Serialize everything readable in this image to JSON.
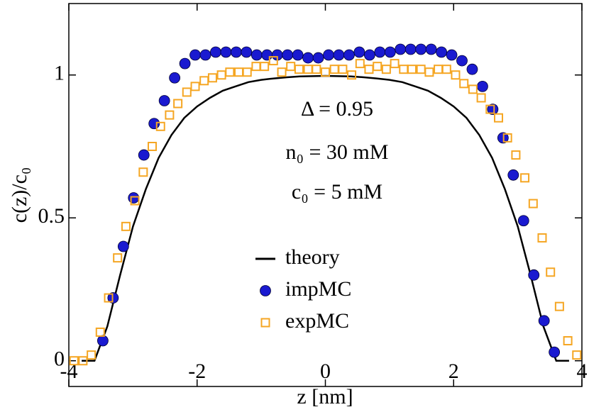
{
  "chart_data": {
    "type": "line",
    "xlabel": "z [nm]",
    "ylabel": "c(z)/c₀",
    "annotations": [
      "Δ = 0.95",
      "n₀ = 30 mM",
      "c₀ = 5 mM"
    ],
    "xlim": [
      -4,
      4
    ],
    "ylim": [
      -0.09,
      1.25
    ],
    "xticks": [
      -4,
      -2,
      0,
      2,
      4
    ],
    "yticks": [
      0,
      0.5,
      1
    ],
    "legend": "center",
    "series": [
      {
        "name": "theory",
        "color": "#000000",
        "marker": "line",
        "x": [
          -3.8,
          -3.6,
          -3.4,
          -3.2,
          -3.0,
          -2.8,
          -2.6,
          -2.4,
          -2.2,
          -2.0,
          -1.8,
          -1.6,
          -1.4,
          -1.2,
          -1.0,
          -0.8,
          -0.6,
          -0.4,
          -0.2,
          0,
          0.2,
          0.4,
          0.6,
          0.8,
          1.0,
          1.2,
          1.4,
          1.6,
          1.8,
          2.0,
          2.2,
          2.4,
          2.6,
          2.8,
          3.0,
          3.2,
          3.4,
          3.6,
          3.8
        ],
        "values": [
          0,
          0,
          0.12,
          0.3,
          0.47,
          0.6,
          0.71,
          0.79,
          0.85,
          0.89,
          0.92,
          0.945,
          0.96,
          0.975,
          0.983,
          0.988,
          0.992,
          0.995,
          0.996,
          0.997,
          0.996,
          0.995,
          0.992,
          0.988,
          0.983,
          0.975,
          0.96,
          0.945,
          0.92,
          0.89,
          0.85,
          0.79,
          0.71,
          0.6,
          0.47,
          0.3,
          0.12,
          0,
          0
        ]
      },
      {
        "name": "impMC",
        "color": "#1a1ad0",
        "marker": "circle",
        "x": [
          -3.47,
          -3.31,
          -3.15,
          -2.99,
          -2.83,
          -2.67,
          -2.51,
          -2.35,
          -2.19,
          -2.03,
          -1.87,
          -1.71,
          -1.55,
          -1.39,
          -1.23,
          -1.07,
          -0.91,
          -0.75,
          -0.59,
          -0.43,
          -0.27,
          -0.11,
          0.05,
          0.21,
          0.37,
          0.53,
          0.69,
          0.85,
          1.01,
          1.17,
          1.33,
          1.49,
          1.65,
          1.81,
          1.97,
          2.13,
          2.29,
          2.45,
          2.61,
          2.77,
          2.93,
          3.09,
          3.25,
          3.41,
          3.57
        ],
        "values": [
          0.07,
          0.22,
          0.4,
          0.57,
          0.72,
          0.83,
          0.91,
          0.99,
          1.04,
          1.07,
          1.07,
          1.08,
          1.08,
          1.08,
          1.08,
          1.07,
          1.07,
          1.07,
          1.07,
          1.07,
          1.06,
          1.06,
          1.07,
          1.07,
          1.07,
          1.08,
          1.07,
          1.08,
          1.08,
          1.09,
          1.09,
          1.09,
          1.09,
          1.08,
          1.07,
          1.05,
          1.02,
          0.96,
          0.88,
          0.78,
          0.65,
          0.49,
          0.3,
          0.14,
          0.03
        ]
      },
      {
        "name": "expMC",
        "color": "#f5a623",
        "marker": "square",
        "x": [
          -3.92,
          -3.78,
          -3.65,
          -3.51,
          -3.38,
          -3.24,
          -3.11,
          -2.97,
          -2.84,
          -2.7,
          -2.57,
          -2.43,
          -2.3,
          -2.16,
          -2.03,
          -1.89,
          -1.76,
          -1.62,
          -1.49,
          -1.35,
          -1.22,
          -1.08,
          -0.95,
          -0.81,
          -0.68,
          -0.54,
          -0.41,
          -0.27,
          -0.14,
          0,
          0.14,
          0.27,
          0.41,
          0.54,
          0.68,
          0.81,
          0.95,
          1.08,
          1.22,
          1.35,
          1.49,
          1.62,
          1.76,
          1.89,
          2.03,
          2.16,
          2.3,
          2.43,
          2.57,
          2.7,
          2.84,
          2.97,
          3.11,
          3.24,
          3.38,
          3.51,
          3.65,
          3.78,
          3.92
        ],
        "values": [
          0,
          0,
          0.02,
          0.1,
          0.22,
          0.36,
          0.47,
          0.56,
          0.66,
          0.75,
          0.82,
          0.86,
          0.9,
          0.94,
          0.96,
          0.98,
          0.99,
          1.0,
          1.01,
          1.01,
          1.01,
          1.03,
          1.03,
          1.05,
          1.01,
          1.03,
          1.02,
          1.02,
          1.02,
          1.01,
          1.02,
          1.02,
          1.0,
          1.04,
          1.02,
          1.03,
          1.02,
          1.04,
          1.02,
          1.02,
          1.02,
          1.01,
          1.02,
          1.02,
          1.0,
          0.97,
          0.95,
          0.92,
          0.88,
          0.85,
          0.78,
          0.72,
          0.64,
          0.55,
          0.43,
          0.31,
          0.19,
          0.07,
          0.02
        ]
      }
    ]
  }
}
